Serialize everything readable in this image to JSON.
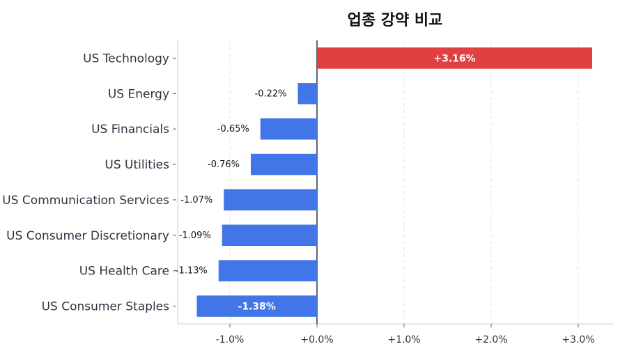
{
  "chart_data": {
    "type": "bar",
    "orientation": "horizontal",
    "title": "업종 강약 비교",
    "categories": [
      "US Technology",
      "US Energy",
      "US Financials",
      "US Utilities",
      "US Communication Services",
      "US Consumer Discretionary",
      "US Health Care",
      "US Consumer Staples"
    ],
    "values": [
      3.16,
      -0.22,
      -0.65,
      -0.76,
      -1.07,
      -1.09,
      -1.13,
      -1.38
    ],
    "value_labels": [
      "+3.16%",
      "-0.22%",
      "-0.65%",
      "-0.76%",
      "-1.07%",
      "-1.09%",
      "-1.13%",
      "-1.38%"
    ],
    "x_ticks": [
      -1.0,
      0.0,
      1.0,
      2.0,
      3.0
    ],
    "x_tick_labels": [
      "-1.0%",
      "+0.0%",
      "+1.0%",
      "+2.0%",
      "+3.0%"
    ],
    "xlim": [
      -1.6,
      3.4
    ],
    "grid": "vertical-dashed",
    "colors": {
      "positive": "#e04040",
      "negative": "#4175e8",
      "zero_line": "#2e3440",
      "grid": "#e3e3e3",
      "axis": "#cccccc"
    }
  }
}
